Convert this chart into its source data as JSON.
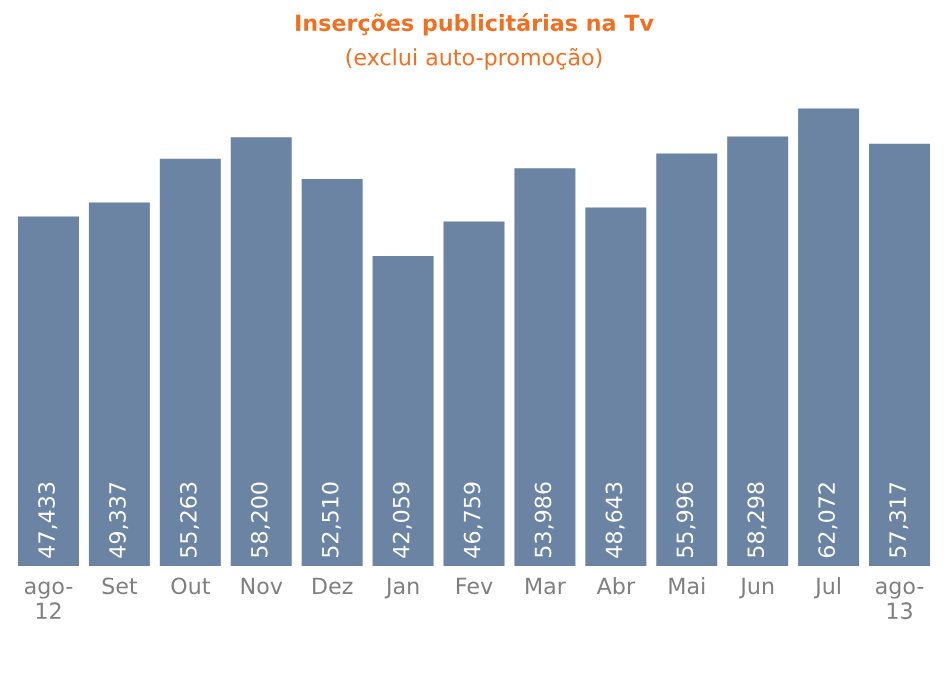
{
  "chart_data": {
    "type": "bar",
    "title": "Inserções publicitárias na Tv",
    "subtitle": "(exclui auto-promoção)",
    "categories": [
      "ago-\n12",
      "Set",
      "Out",
      "Nov",
      "Dez",
      "Jan",
      "Fev",
      "Mar",
      "Abr",
      "Mai",
      "Jun",
      "Jul",
      "ago-\n13"
    ],
    "values": [
      47433,
      49337,
      55263,
      58200,
      52510,
      42059,
      46759,
      53986,
      48643,
      55996,
      58298,
      62072,
      57317
    ],
    "value_labels": [
      "47,433",
      "49,337",
      "55,263",
      "58,200",
      "52,510",
      "42,059",
      "46,759",
      "53,986",
      "48,643",
      "55,996",
      "58,298",
      "62,072",
      "57,317"
    ],
    "color": "#6b84a3",
    "grid": false,
    "legend": false
  }
}
